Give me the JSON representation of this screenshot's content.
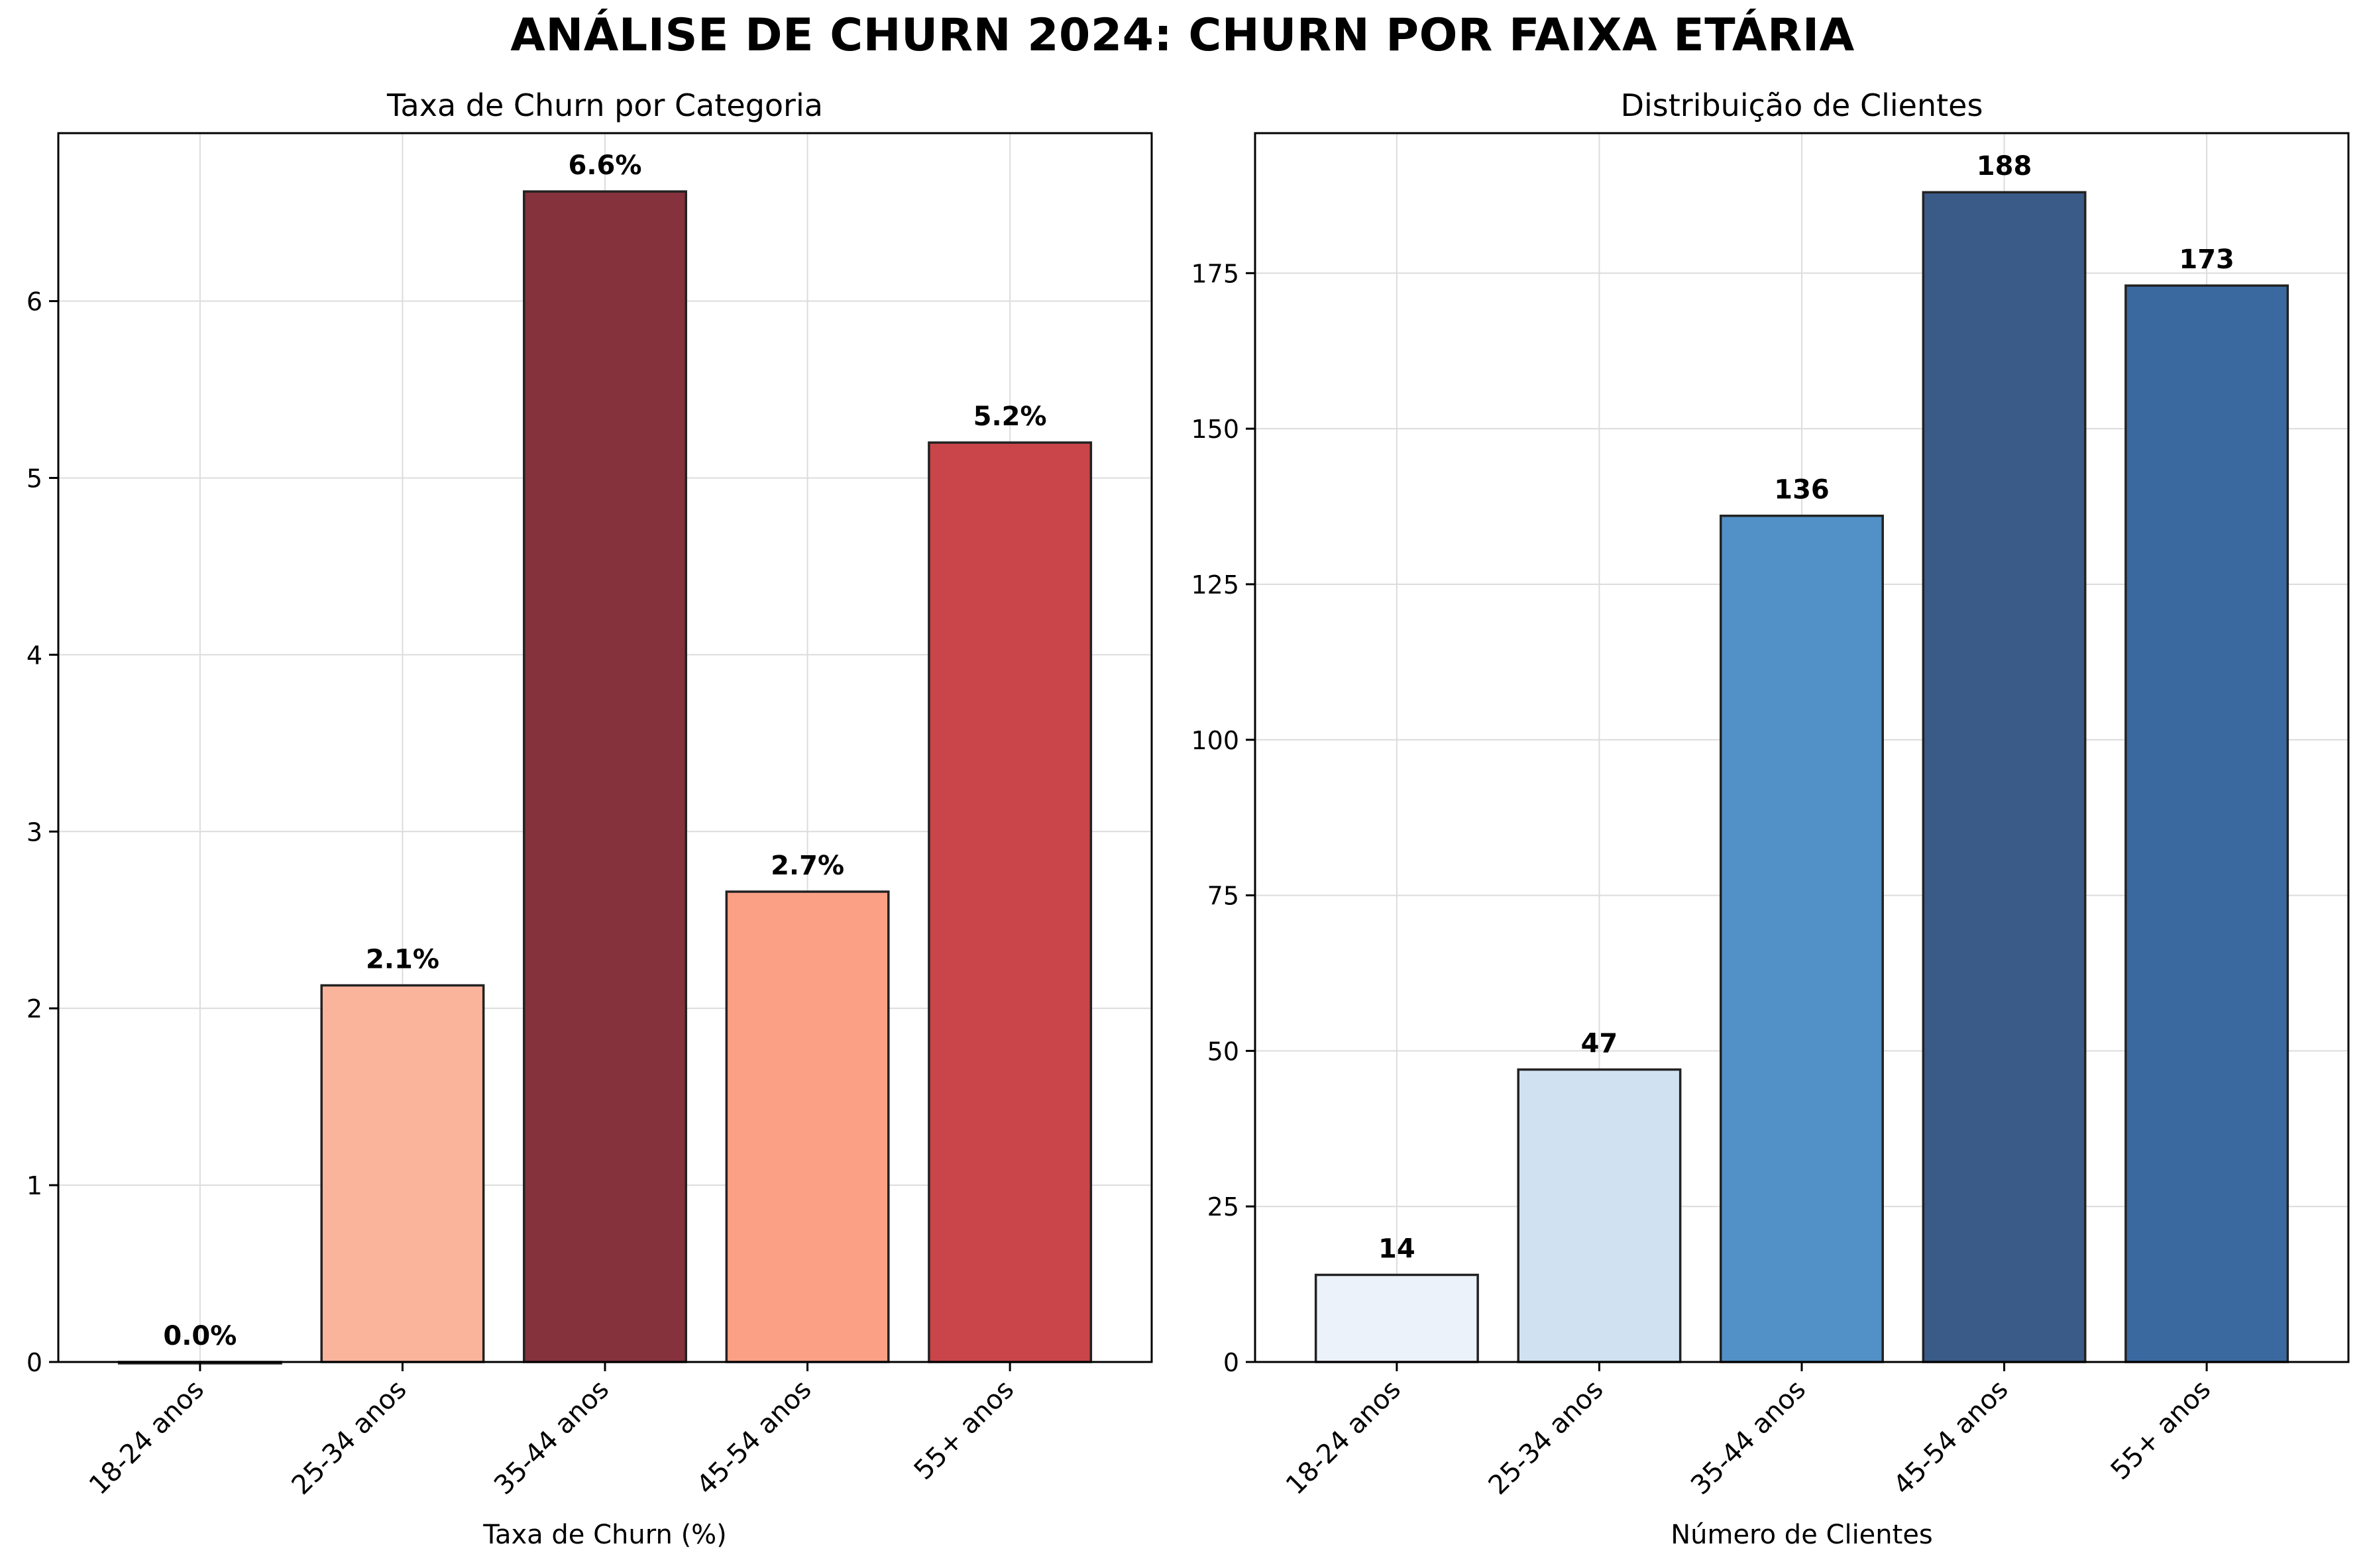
{
  "figure": {
    "title": "ANÁLISE DE CHURN 2024: CHURN POR FAIXA ETÁRIA"
  },
  "chart_data": [
    {
      "type": "bar",
      "title": "Taxa de Churn por Categoria",
      "xlabel": "Taxa de Churn (%)",
      "ylabel": "",
      "categories": [
        "18-24 anos",
        "25-34 anos",
        "35-44 anos",
        "45-54 anos",
        "55+ anos"
      ],
      "values": [
        0.0,
        2.13,
        6.62,
        2.66,
        5.2
      ],
      "value_labels": [
        "0.0%",
        "2.1%",
        "6.6%",
        "2.7%",
        "5.2%"
      ],
      "bar_colors": [
        "#fff5f0",
        "#fbb49c",
        "#86323d",
        "#fba085",
        "#ca4549"
      ],
      "ylim": [
        0,
        6.95
      ],
      "yticks": [
        0,
        1,
        2,
        3,
        4,
        5,
        6
      ],
      "grid": true
    },
    {
      "type": "bar",
      "title": "Distribuição de Clientes",
      "xlabel": "Número de Clientes",
      "ylabel": "",
      "categories": [
        "18-24 anos",
        "25-34 anos",
        "35-44 anos",
        "45-54 anos",
        "55+ anos"
      ],
      "values": [
        14,
        47,
        136,
        188,
        173
      ],
      "value_labels": [
        "14",
        "47",
        "136",
        "188",
        "173"
      ],
      "bar_colors": [
        "#ecf2fa",
        "#d0e1f2",
        "#5291c7",
        "#3a5a87",
        "#3a69a0"
      ],
      "ylim": [
        0,
        197.5
      ],
      "yticks": [
        0,
        25,
        50,
        75,
        100,
        125,
        150,
        175
      ],
      "grid": true
    }
  ]
}
